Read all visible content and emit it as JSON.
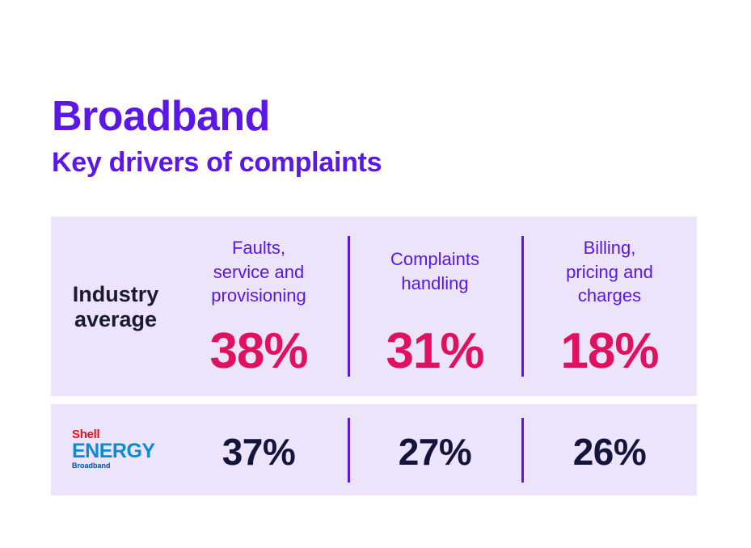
{
  "title": "Broadband",
  "subtitle": "Key drivers of complaints",
  "chart_data": {
    "type": "table",
    "title": "Broadband",
    "subtitle": "Key drivers of complaints",
    "categories": [
      "Faults, service and provisioning",
      "Complaints handling",
      "Billing, pricing and charges"
    ],
    "category_lines": [
      [
        "Faults,",
        "service and",
        "provisioning"
      ],
      [
        "Complaints",
        "handling"
      ],
      [
        "Billing,",
        "pricing and",
        "charges"
      ]
    ],
    "rows": [
      {
        "label_lines": [
          "Industry",
          "average"
        ],
        "values": [
          38,
          31,
          18
        ],
        "display": [
          "38%",
          "31%",
          "18%"
        ]
      },
      {
        "logo": {
          "line1": "Shell",
          "line2": "ENERGY",
          "line3": "Broadband"
        },
        "values": [
          37,
          27,
          26
        ],
        "display": [
          "37%",
          "27%",
          "26%"
        ]
      }
    ],
    "unit": "%"
  },
  "colors": {
    "accent": "#5a17e6",
    "highlight": "#e0125f",
    "dark_text": "#14143c",
    "panel_bg": "#ebe4fb",
    "shell_red": "#e2121f",
    "shell_blue": "#0a8bd4"
  }
}
